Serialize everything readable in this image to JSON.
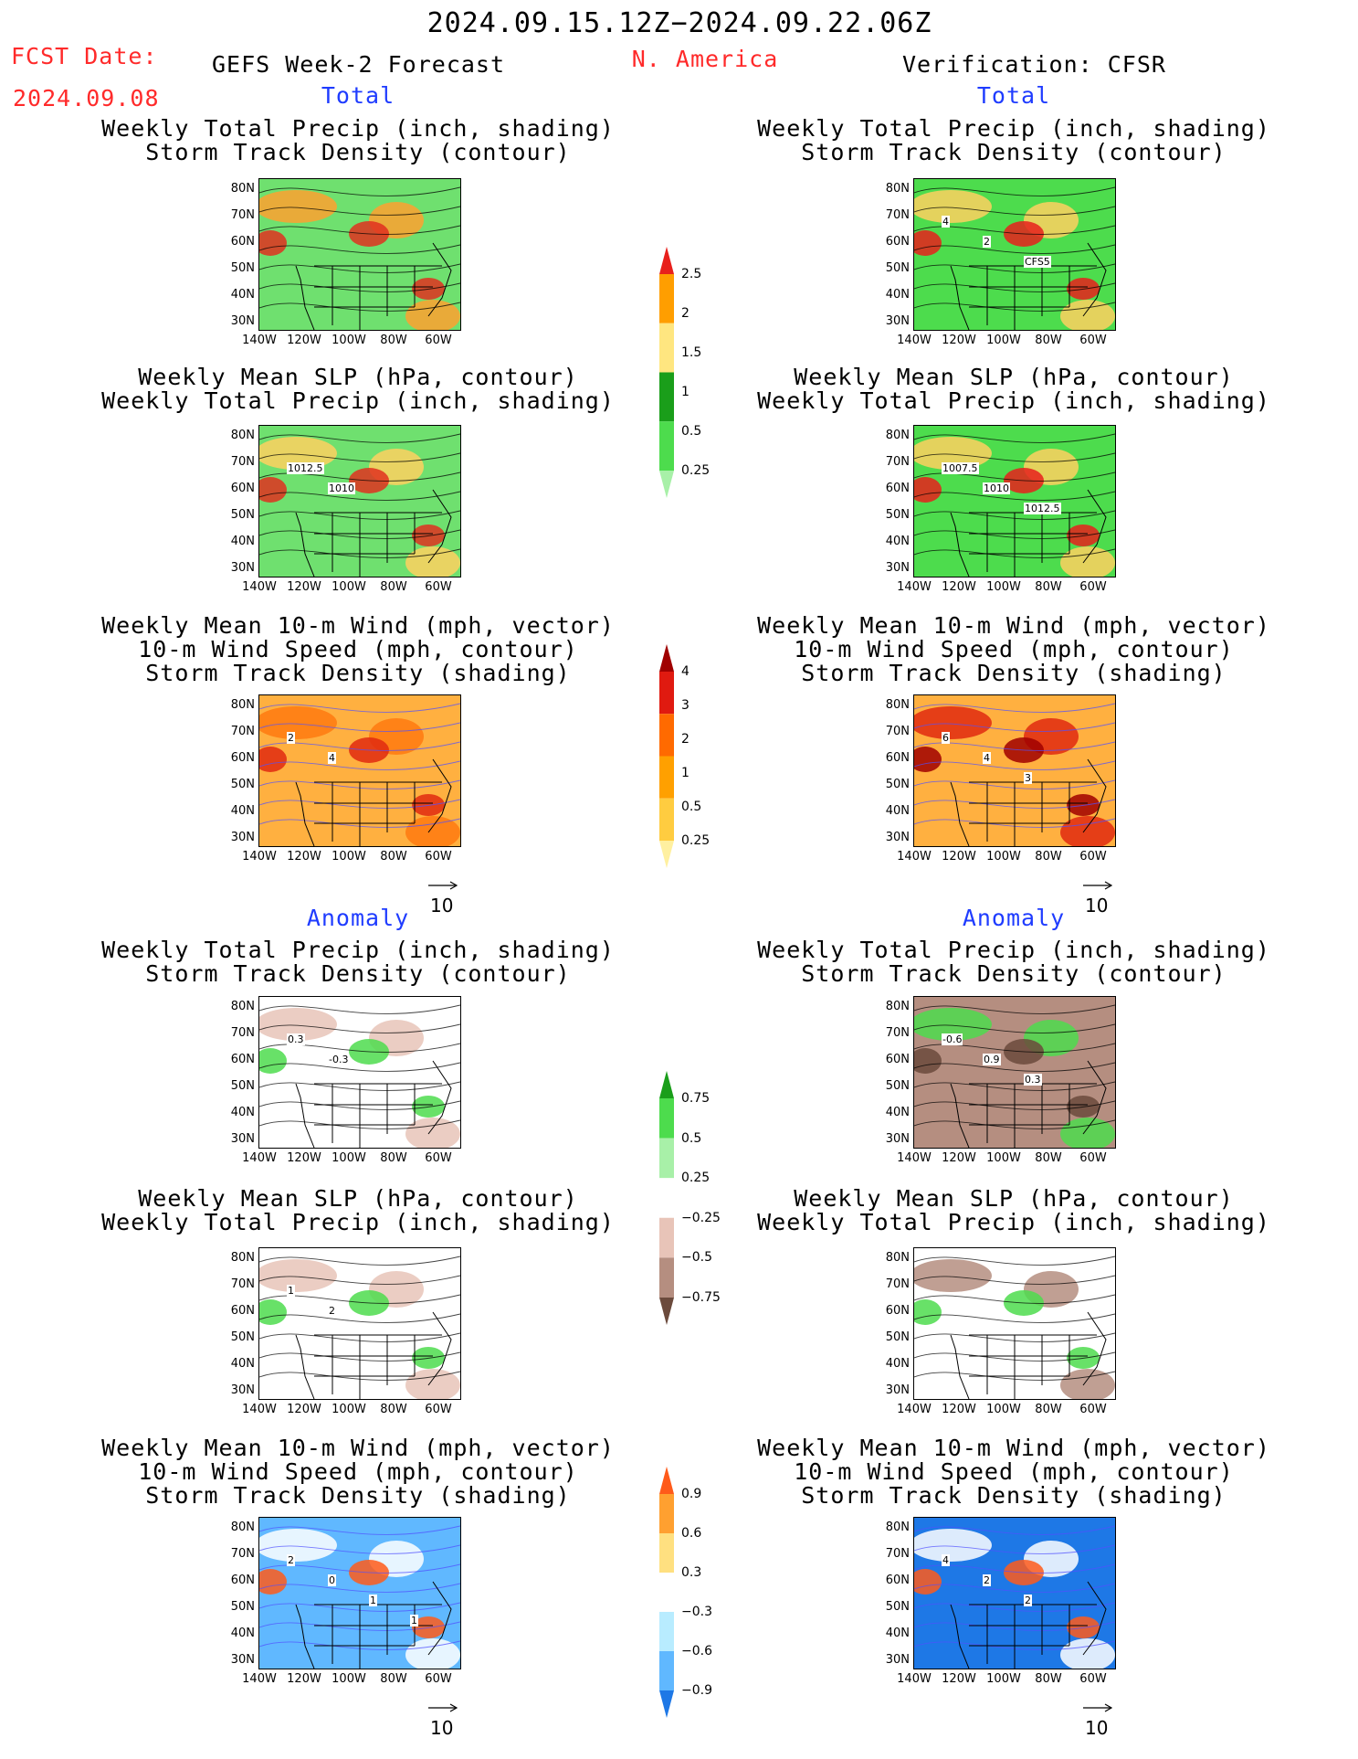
{
  "header": {
    "period": "2024.09.15.12Z−2024.09.22.06Z",
    "fcst_label": "FCST Date:",
    "fcst_date": "2024.09.08",
    "model": "GEFS Week-2 Forecast",
    "region": "N. America",
    "verification": "Verification: CFSR"
  },
  "sections": {
    "total": "Total",
    "anomaly": "Anomaly"
  },
  "titles": {
    "precip_track": [
      "Weekly Total Precip (inch, shading)",
      "Storm Track Density (contour)"
    ],
    "slp_precip": [
      "Weekly Mean SLP (hPa, contour)",
      "Weekly Total Precip (inch, shading)"
    ],
    "wind_track": [
      "Weekly Mean 10-m Wind (mph, vector)",
      "10-m Wind Speed (mph, contour)",
      "Storm Track Density (shading)"
    ]
  },
  "axes": {
    "lat_ticks": [
      "80N",
      "70N",
      "60N",
      "50N",
      "40N",
      "30N"
    ],
    "lon_ticks": [
      "140W",
      "120W",
      "100W",
      "80W",
      "60W"
    ]
  },
  "vector_ref": "10",
  "colorbars": {
    "precip_total": {
      "levels": [
        "2.5",
        "2",
        "1.5",
        "1",
        "0.5",
        "0.25"
      ],
      "colors": [
        "#e8201c",
        "#ff9e00",
        "#ffe680",
        "#1a9e1a",
        "#4ddc4d",
        "#a8f0a8"
      ]
    },
    "track_total": {
      "levels": [
        "4",
        "3",
        "2",
        "1",
        "0.5",
        "0.25"
      ],
      "colors": [
        "#a00000",
        "#e01a10",
        "#ff6a00",
        "#ffa000",
        "#ffcc40",
        "#fff0a0"
      ]
    },
    "precip_anom": {
      "levels": [
        "0.75",
        "0.5",
        "0.25",
        "−0.25",
        "−0.5",
        "−0.75"
      ],
      "colors": [
        "#1a9e1a",
        "#4ddc4d",
        "#a8f0a8",
        "#ffffff",
        "#e8c4b8",
        "#b58e80",
        "#6b4a3c"
      ]
    },
    "track_anom": {
      "levels": [
        "0.9",
        "0.6",
        "0.3",
        "−0.3",
        "−0.6",
        "−0.9"
      ],
      "colors": [
        "#ff5a1a",
        "#ffa030",
        "#ffe080",
        "#ffffff",
        "#b8ecff",
        "#60b8ff",
        "#1e78e6"
      ]
    }
  },
  "panels": [
    {
      "id": "gefs-total-precip",
      "colors": {
        "bg": "#6fe06f",
        "accent": "#ffa030",
        "hot": "#e03020"
      },
      "labels": []
    },
    {
      "id": "cfsr-total-precip",
      "colors": {
        "bg": "#4ddc4d",
        "accent": "#ffd060",
        "hot": "#e8201c"
      },
      "labels": [
        "4",
        "2",
        "CFS5"
      ]
    },
    {
      "id": "gefs-total-slp",
      "colors": {
        "bg": "#6fe06f",
        "accent": "#ffd060",
        "hot": "#e03020"
      },
      "labels": [
        "1012.5",
        "1010"
      ]
    },
    {
      "id": "cfsr-total-slp",
      "colors": {
        "bg": "#4ddc4d",
        "accent": "#ffd060",
        "hot": "#e8201c"
      },
      "labels": [
        "1007.5",
        "1010",
        "1012.5"
      ]
    },
    {
      "id": "gefs-total-wind",
      "colors": {
        "bg": "#ffb040",
        "accent": "#ff7a10",
        "hot": "#e02a10"
      },
      "labels": [
        "2",
        "4"
      ]
    },
    {
      "id": "cfsr-total-wind",
      "colors": {
        "bg": "#ffb040",
        "accent": "#e02a10",
        "hot": "#a00000"
      },
      "labels": [
        "6",
        "4",
        "3"
      ]
    },
    {
      "id": "gefs-anom-precip",
      "colors": {
        "bg": "#ffffff",
        "accent": "#e8c4b8",
        "hot": "#4ddc4d"
      },
      "labels": [
        "0.3",
        "-0.3"
      ]
    },
    {
      "id": "cfsr-anom-precip",
      "colors": {
        "bg": "#b58e80",
        "accent": "#4ddc4d",
        "hot": "#6b4a3c"
      },
      "labels": [
        "-0.6",
        "0.9",
        "0.3"
      ]
    },
    {
      "id": "gefs-anom-slp",
      "colors": {
        "bg": "#ffffff",
        "accent": "#e8c4b8",
        "hot": "#4ddc4d"
      },
      "labels": [
        "1",
        "2"
      ]
    },
    {
      "id": "cfsr-anom-slp",
      "colors": {
        "bg": "#ffffff",
        "accent": "#b58e80",
        "hot": "#4ddc4d"
      },
      "labels": []
    },
    {
      "id": "gefs-anom-wind",
      "colors": {
        "bg": "#60b8ff",
        "accent": "#ffffff",
        "hot": "#ff5a1a"
      },
      "labels": [
        "2",
        "0",
        "1",
        "1"
      ]
    },
    {
      "id": "cfsr-anom-wind",
      "colors": {
        "bg": "#1e78e6",
        "accent": "#ffffff",
        "hot": "#ff5a1a"
      },
      "labels": [
        "4",
        "2",
        "2"
      ]
    }
  ]
}
